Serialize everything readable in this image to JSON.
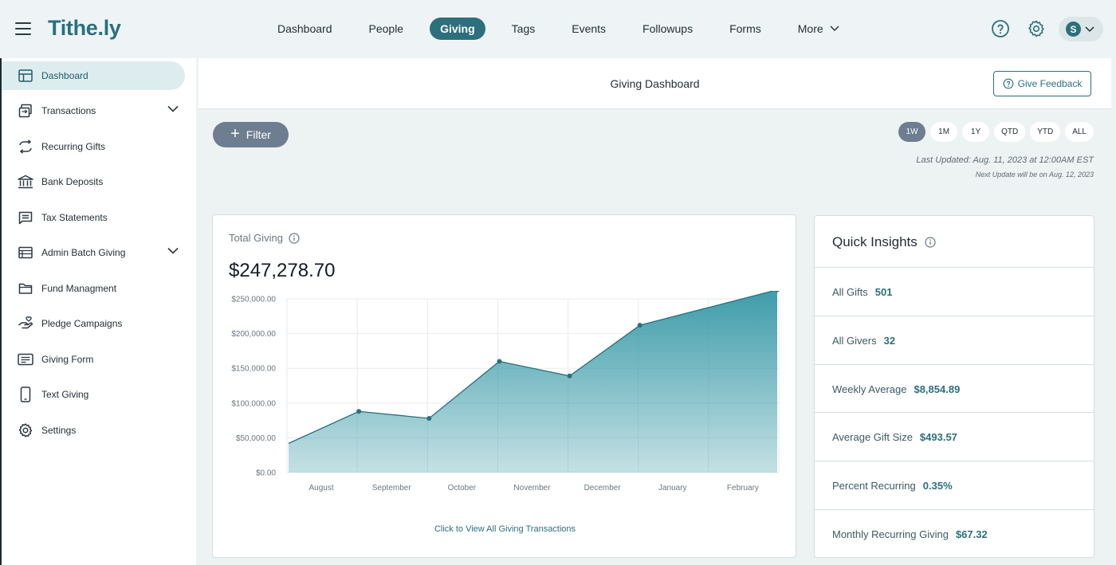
{
  "app": {
    "logo": "Tithe.ly"
  },
  "nav": {
    "items": [
      {
        "label": "Dashboard",
        "active": false
      },
      {
        "label": "People",
        "active": false
      },
      {
        "label": "Giving",
        "active": true
      },
      {
        "label": "Tags",
        "active": false
      },
      {
        "label": "Events",
        "active": false
      },
      {
        "label": "Followups",
        "active": false
      },
      {
        "label": "Forms",
        "active": false
      },
      {
        "label": "More",
        "active": false,
        "dropdown": true
      }
    ],
    "help_icon": "help-circle-icon",
    "settings_icon": "gear-icon",
    "user_initial": "S"
  },
  "sidebar": {
    "items": [
      {
        "label": "Dashboard",
        "icon": "dashboard-icon",
        "active": true
      },
      {
        "label": "Transactions",
        "icon": "transactions-icon",
        "expandable": true
      },
      {
        "label": "Recurring Gifts",
        "icon": "recurring-icon"
      },
      {
        "label": "Bank Deposits",
        "icon": "bank-icon"
      },
      {
        "label": "Tax Statements",
        "icon": "statement-icon"
      },
      {
        "label": "Admin Batch Giving",
        "icon": "batch-icon",
        "expandable": true
      },
      {
        "label": "Fund Managment",
        "icon": "folder-icon"
      },
      {
        "label": "Pledge Campaigns",
        "icon": "pledge-icon"
      },
      {
        "label": "Giving Form",
        "icon": "form-icon"
      },
      {
        "label": "Text Giving",
        "icon": "phone-icon"
      },
      {
        "label": "Settings",
        "icon": "gear-icon"
      }
    ]
  },
  "header": {
    "title": "Giving Dashboard",
    "feedback_label": "Give Feedback"
  },
  "toolbar": {
    "filter_label": "Filter",
    "ranges": [
      "1W",
      "1M",
      "1Y",
      "QTD",
      "YTD",
      "ALL"
    ],
    "active_range": "1W",
    "last_updated": "Last Updated: Aug. 11, 2023 at 12:00AM EST",
    "next_update": "Next Update will be on Aug. 12, 2023"
  },
  "total_giving": {
    "label": "Total Giving",
    "amount": "$247,278.70",
    "link": "Click to View All Giving Transactions"
  },
  "chart_data": {
    "type": "area",
    "categories": [
      "August",
      "September",
      "October",
      "November",
      "December",
      "January",
      "February"
    ],
    "y_tick_labels": [
      "$0.00",
      "$50,000.00",
      "$100,000.00",
      "$150,000.00",
      "$200,000.00",
      "$250,000.00"
    ],
    "ylim": [
      0,
      250000
    ],
    "series": [
      {
        "x_index": [
          -0.2,
          1,
          2,
          3,
          4,
          5,
          6.4
        ],
        "values": [
          42000,
          88000,
          78000,
          160000,
          139000,
          212000,
          263000
        ]
      }
    ],
    "grid": true,
    "color": "#3a9aa8"
  },
  "quick_insights": {
    "title": "Quick Insights",
    "rows": [
      {
        "label": "All Gifts",
        "value": "501"
      },
      {
        "label": "All Givers",
        "value": "32"
      },
      {
        "label": "Weekly Average",
        "value": "$8,854.89"
      },
      {
        "label": "Average Gift Size",
        "value": "$493.57"
      },
      {
        "label": "Percent Recurring",
        "value": "0.35%"
      },
      {
        "label": "Monthly Recurring Giving",
        "value": "$67.32"
      }
    ]
  }
}
